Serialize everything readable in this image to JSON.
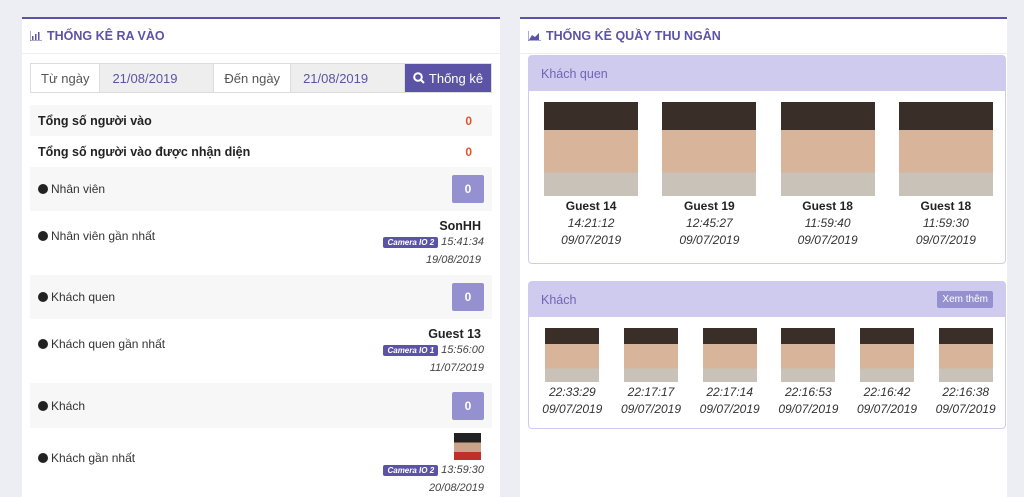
{
  "left": {
    "title": "THỐNG KÊ RA VÀO",
    "icon": "bar-chart-icon",
    "from_label": "Từ ngày",
    "from_value": "21/08/2019",
    "to_label": "Đến ngày",
    "to_value": "21/08/2019",
    "search_label": "Thống kê",
    "total_in_label": "Tổng số người vào",
    "total_in": "0",
    "total_recognized_label": "Tổng số người vào được nhận diện",
    "total_recognized": "0",
    "staff_label": "Nhân viên",
    "staff_count": "0",
    "latest_staff_label": "Nhân viên gần nhất",
    "latest_staff": {
      "name": "SonHH",
      "camera": "Camera IO 2",
      "time": "15:41:34",
      "date": "19/08/2019"
    },
    "regular_label": "Khách quen",
    "regular_count": "0",
    "latest_regular_label": "Khách quen gần nhất",
    "latest_regular": {
      "name": "Guest 13",
      "camera": "Camera IO 1",
      "time": "15:56:00",
      "date": "11/07/2019"
    },
    "guest_label": "Khách",
    "guest_count": "0",
    "latest_guest_label": "Khách gần nhất",
    "latest_guest": {
      "camera": "Camera IO 2",
      "time": "13:59:30",
      "date": "20/08/2019"
    }
  },
  "right": {
    "title": "THỐNG KÊ QUẦY THU NGÂN",
    "icon": "area-chart-icon",
    "regulars_title": "Khách quen",
    "regulars": [
      {
        "name": "Guest 14",
        "time": "14:21:12",
        "date": "09/07/2019"
      },
      {
        "name": "Guest 19",
        "time": "12:45:27",
        "date": "09/07/2019"
      },
      {
        "name": "Guest 18",
        "time": "11:59:40",
        "date": "09/07/2019"
      },
      {
        "name": "Guest 18",
        "time": "11:59:30",
        "date": "09/07/2019"
      }
    ],
    "guests_title": "Khách",
    "more_label": "Xem thêm",
    "guests": [
      {
        "time": "22:33:29",
        "date": "09/07/2019"
      },
      {
        "time": "22:17:17",
        "date": "09/07/2019"
      },
      {
        "time": "22:17:14",
        "date": "09/07/2019"
      },
      {
        "time": "22:16:53",
        "date": "09/07/2019"
      },
      {
        "time": "22:16:42",
        "date": "09/07/2019"
      },
      {
        "time": "22:16:38",
        "date": "09/07/2019"
      }
    ]
  },
  "colors": {
    "accent": "#5b53a6",
    "badge": "#9590d0",
    "card_header": "#cfcbee",
    "count_red": "#e0552c"
  }
}
